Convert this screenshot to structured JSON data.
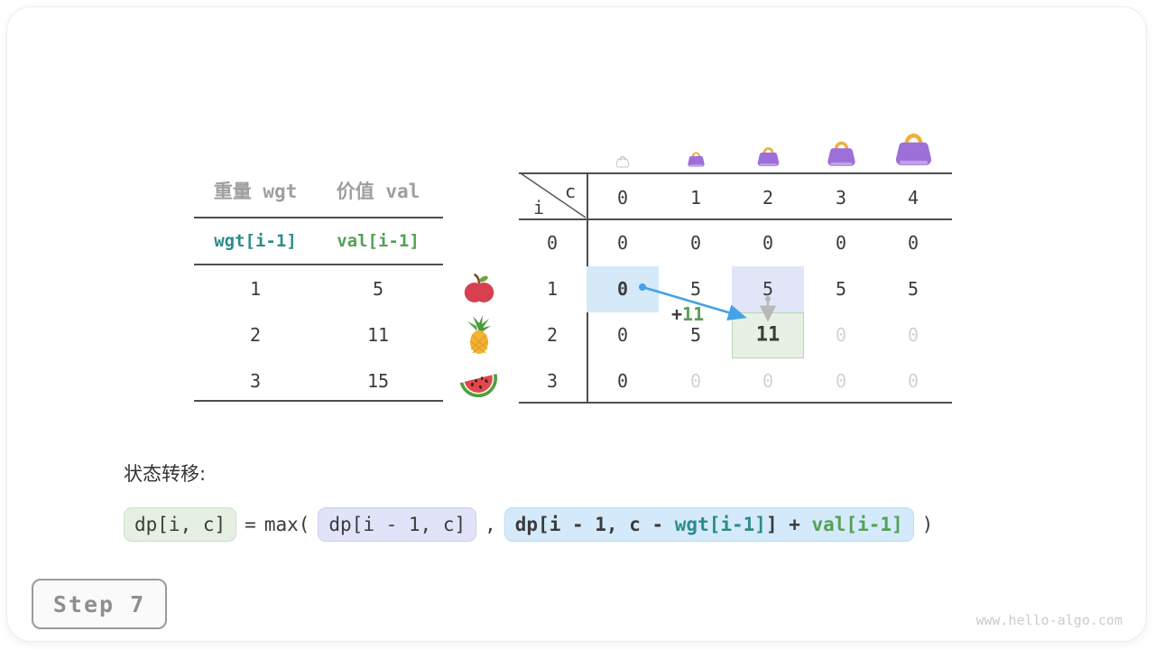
{
  "items_table": {
    "headers": [
      "重量 wgt",
      "价值 val"
    ],
    "sub_headers": [
      "wgt[i-1]",
      "val[i-1]"
    ],
    "rows": [
      [
        "1",
        "5"
      ],
      [
        "2",
        "11"
      ],
      [
        "3",
        "15"
      ]
    ],
    "row_icons": [
      "apple-icon",
      "pineapple-icon",
      "watermelon-icon"
    ]
  },
  "dp_table": {
    "corner": {
      "top": "c",
      "bottom": "i"
    },
    "col_headers": [
      "0",
      "1",
      "2",
      "3",
      "4"
    ],
    "row_headers": [
      "0",
      "1",
      "2",
      "3"
    ],
    "cells": [
      [
        "0",
        "0",
        "0",
        "0",
        "0"
      ],
      [
        "0",
        "5",
        "5",
        "5",
        "5"
      ],
      [
        "0",
        "5",
        "11",
        "0",
        "0"
      ],
      [
        "0",
        "0",
        "0",
        "0",
        "0"
      ]
    ],
    "muted_cells": [
      [
        2,
        3
      ],
      [
        2,
        4
      ],
      [
        3,
        1
      ],
      [
        3,
        2
      ],
      [
        3,
        3
      ],
      [
        3,
        4
      ]
    ],
    "bold_cells": [
      [
        1,
        0
      ],
      [
        2,
        2
      ]
    ],
    "highlights": [
      {
        "cell": [
          1,
          0
        ],
        "style": "blue"
      },
      {
        "cell": [
          1,
          2
        ],
        "style": "lavender"
      },
      {
        "cell": [
          2,
          2
        ],
        "style": "green"
      }
    ],
    "capacity_icons": [
      "empty-bag-icon",
      "bag-icon-1",
      "bag-icon-2",
      "bag-icon-3",
      "bag-icon-4"
    ],
    "annotation": {
      "operator": "+",
      "value": "11"
    }
  },
  "formula": {
    "heading": "状态转移:",
    "lhs": "dp[i, c]",
    "eq": "=",
    "max_open": "max(",
    "arg1": "dp[i - 1, c]",
    "comma": ",",
    "arg2_prefix": "dp[i - 1, c - ",
    "arg2_wgt": "wgt[i-1]",
    "arg2_mid": "] + ",
    "arg2_val": "val[i-1]",
    "close": ")"
  },
  "step_label": "Step 7",
  "watermark": "www.hello-algo.com",
  "colors": {
    "text_dark": "#3b3b3b",
    "text_muted": "#d2d2d2",
    "header_gray": "#9f9f9f",
    "teal": "#2e8b8b",
    "green": "#55a055",
    "arrow_blue": "#45a2e6",
    "arrow_gray": "#b8b8b8",
    "cell_blue": "#d5e9f9",
    "cell_lavender": "#e2e4f7",
    "cell_green": "#e7f0e3",
    "bag_purple": "#9d6fd8",
    "bag_handle_orange": "#f0ae3c"
  }
}
